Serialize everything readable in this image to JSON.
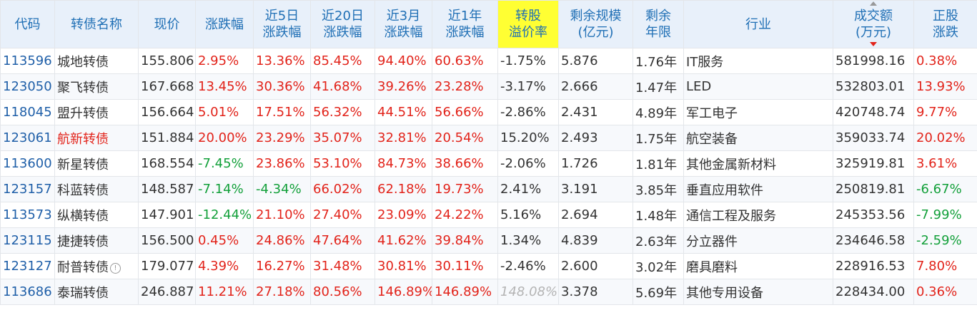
{
  "colors": {
    "header_bg": "#e8f0fa",
    "header_text": "#1f6fb5",
    "highlight": "#ffff33",
    "up": "#e2231a",
    "down": "#13a03a",
    "code": "#1f5fa8"
  },
  "headers": {
    "code": "代码",
    "name": "转债名称",
    "price": "现价",
    "change": "涨跌幅",
    "chg5d": [
      "近5日",
      "涨跌幅"
    ],
    "chg20d": [
      "近20日",
      "涨跌幅"
    ],
    "chg3m": [
      "近3月",
      "涨跌幅"
    ],
    "chg1y": [
      "近1年",
      "涨跌幅"
    ],
    "premium": [
      "转股",
      "溢价率"
    ],
    "scale": [
      "剩余规模",
      "(亿元)"
    ],
    "years": [
      "剩余",
      "年限"
    ],
    "industry": "行业",
    "volume": [
      "成交额",
      "(万元)"
    ],
    "stock_change": [
      "正股",
      "涨跌"
    ]
  },
  "sort": {
    "column": "volume",
    "direction": "desc"
  },
  "rows": [
    {
      "code": "113596",
      "name": "城地转债",
      "price": "155.806",
      "change": "2.95%",
      "chg5d": "13.36%",
      "chg20d": "85.45%",
      "chg3m": "94.40%",
      "chg1y": "60.63%",
      "premium": "-1.75%",
      "scale": "5.876",
      "years": "1.76年",
      "industry": "IT服务",
      "volume": "581998.16",
      "stock_change": "0.38%"
    },
    {
      "code": "123050",
      "name": "聚飞转债",
      "price": "167.668",
      "change": "13.45%",
      "chg5d": "30.36%",
      "chg20d": "41.68%",
      "chg3m": "39.26%",
      "chg1y": "23.28%",
      "premium": "-3.17%",
      "scale": "2.666",
      "years": "1.47年",
      "industry": "LED",
      "volume": "532803.01",
      "stock_change": "13.93%"
    },
    {
      "code": "118045",
      "name": "盟升转债",
      "price": "156.664",
      "change": "5.01%",
      "chg5d": "17.51%",
      "chg20d": "56.32%",
      "chg3m": "44.51%",
      "chg1y": "56.66%",
      "premium": "-2.86%",
      "scale": "2.431",
      "years": "4.89年",
      "industry": "军工电子",
      "volume": "420748.74",
      "stock_change": "9.77%"
    },
    {
      "code": "123061",
      "name": "航新转债",
      "price": "151.884",
      "change": "20.00%",
      "chg5d": "23.29%",
      "chg20d": "35.07%",
      "chg3m": "32.81%",
      "chg1y": "20.54%",
      "premium": "15.20%",
      "scale": "2.493",
      "years": "1.75年",
      "industry": "航空装备",
      "volume": "359033.74",
      "stock_change": "20.02%"
    },
    {
      "code": "113600",
      "name": "新星转债",
      "price": "168.554",
      "change": "-7.45%",
      "chg5d": "23.86%",
      "chg20d": "53.10%",
      "chg3m": "84.73%",
      "chg1y": "38.66%",
      "premium": "-2.06%",
      "scale": "1.726",
      "years": "1.81年",
      "industry": "其他金属新材料",
      "volume": "325919.81",
      "stock_change": "3.61%"
    },
    {
      "code": "123157",
      "name": "科蓝转债",
      "price": "148.587",
      "change": "-7.14%",
      "chg5d": "-4.34%",
      "chg20d": "66.02%",
      "chg3m": "62.18%",
      "chg1y": "19.73%",
      "premium": "2.41%",
      "scale": "3.191",
      "years": "3.85年",
      "industry": "垂直应用软件",
      "volume": "250819.81",
      "stock_change": "-6.67%"
    },
    {
      "code": "113573",
      "name": "纵横转债",
      "price": "147.901",
      "change": "-12.44%",
      "chg5d": "21.10%",
      "chg20d": "27.40%",
      "chg3m": "23.09%",
      "chg1y": "24.22%",
      "premium": "5.16%",
      "scale": "2.694",
      "years": "1.48年",
      "industry": "通信工程及服务",
      "volume": "245353.56",
      "stock_change": "-7.99%"
    },
    {
      "code": "123115",
      "name": "捷捷转债",
      "price": "156.500",
      "change": "0.45%",
      "chg5d": "24.86%",
      "chg20d": "47.64%",
      "chg3m": "41.62%",
      "chg1y": "39.84%",
      "premium": "1.34%",
      "scale": "4.839",
      "years": "2.63年",
      "industry": "分立器件",
      "volume": "234646.58",
      "stock_change": "-2.59%"
    },
    {
      "code": "123127",
      "name": "耐普转债",
      "price": "179.077",
      "change": "4.39%",
      "chg5d": "16.27%",
      "chg20d": "31.48%",
      "chg3m": "30.81%",
      "chg1y": "30.11%",
      "premium": "-2.46%",
      "scale": "2.600",
      "years": "3.02年",
      "industry": "磨具磨料",
      "volume": "228916.53",
      "stock_change": "7.80%",
      "info_icon": "!"
    },
    {
      "code": "113686",
      "name": "泰瑞转债",
      "price": "246.887",
      "change": "11.21%",
      "chg5d": "27.18%",
      "chg20d": "80.56%",
      "chg3m": "146.89%",
      "chg1y": "146.89%",
      "premium": "148.08%",
      "scale": "3.378",
      "years": "5.69年",
      "industry": "其他专用设备",
      "volume": "228434.00",
      "stock_change": "0.36%"
    }
  ]
}
